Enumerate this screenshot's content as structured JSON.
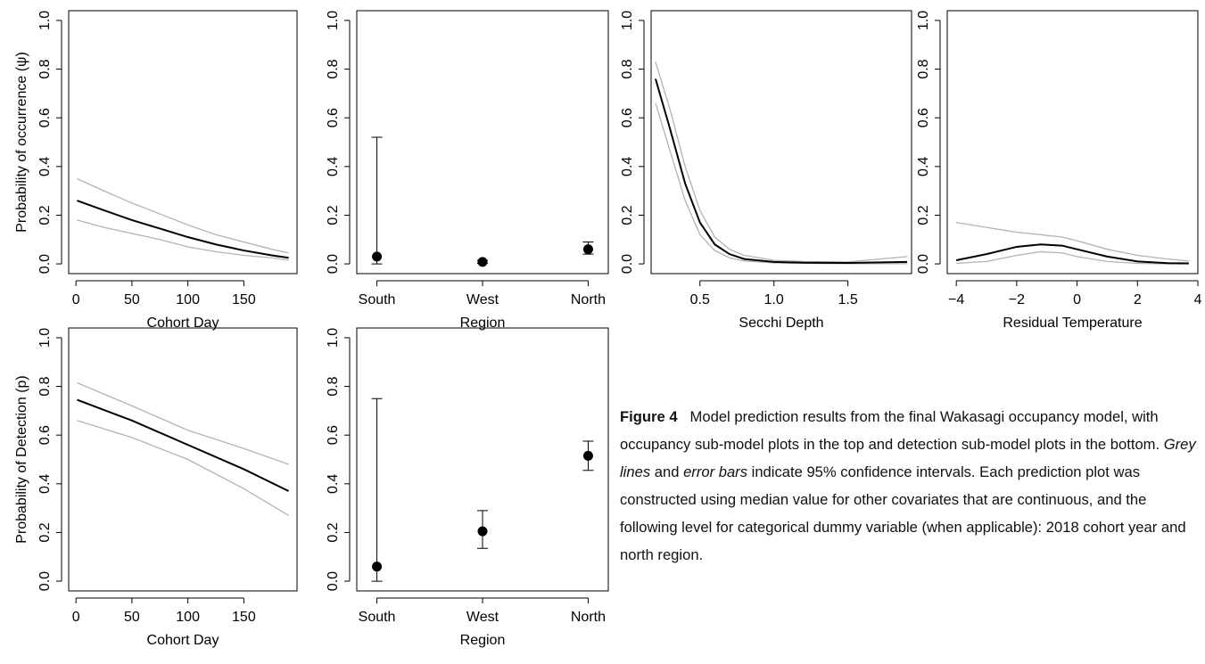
{
  "chart_data": [
    {
      "type": "line",
      "xlabel": "Cohort Day",
      "ylabel": "Probability of occurrence (ψ)",
      "x": [
        1,
        25,
        50,
        75,
        100,
        125,
        150,
        175,
        190
      ],
      "series": [
        {
          "color": "#b3b3b3",
          "values": [
            0.35,
            0.3,
            0.25,
            0.205,
            0.16,
            0.12,
            0.09,
            0.06,
            0.045
          ]
        },
        {
          "color": "#b3b3b3",
          "values": [
            0.18,
            0.15,
            0.125,
            0.1,
            0.07,
            0.05,
            0.035,
            0.025,
            0.015
          ]
        },
        {
          "color": "#000000",
          "values": [
            0.26,
            0.22,
            0.18,
            0.145,
            0.11,
            0.08,
            0.055,
            0.035,
            0.025
          ]
        }
      ],
      "xlim": [
        -6.5,
        197.5
      ],
      "xticks": [
        0,
        50,
        100,
        150
      ],
      "ylim": [
        -0.04,
        1.04
      ],
      "yticks": [
        {
          "value": 0,
          "label": "0.0"
        },
        0.2,
        0.4,
        0.6,
        0.8,
        {
          "value": 1,
          "label": "1.0"
        }
      ]
    },
    {
      "type": "errorbar",
      "xlabel": "Region",
      "categories": [
        "South",
        "West",
        "North"
      ],
      "values": [
        0.03,
        0.008,
        0.06
      ],
      "lower": [
        0.0,
        0.002,
        0.04
      ],
      "upper": [
        0.52,
        0.015,
        0.09
      ],
      "ylim": [
        -0.04,
        1.04
      ],
      "yticks": [
        {
          "value": 0,
          "label": "0.0"
        },
        0.2,
        0.4,
        0.6,
        0.8,
        {
          "value": 1,
          "label": "1.0"
        }
      ]
    },
    {
      "type": "line",
      "xlabel": "Secchi Depth",
      "x": [
        0.2,
        0.3,
        0.4,
        0.5,
        0.6,
        0.7,
        0.8,
        1.0,
        1.2,
        1.5,
        1.9
      ],
      "series": [
        {
          "color": "#b3b3b3",
          "values": [
            0.83,
            0.63,
            0.4,
            0.22,
            0.11,
            0.06,
            0.035,
            0.015,
            0.01,
            0.008,
            0.03
          ]
        },
        {
          "color": "#b3b3b3",
          "values": [
            0.66,
            0.46,
            0.26,
            0.12,
            0.055,
            0.025,
            0.012,
            0.004,
            0.002,
            0.001,
            0.001
          ]
        },
        {
          "color": "#000000",
          "values": [
            0.76,
            0.55,
            0.33,
            0.17,
            0.08,
            0.04,
            0.02,
            0.008,
            0.005,
            0.004,
            0.008
          ]
        }
      ],
      "xlim": [
        0.17,
        1.93
      ],
      "xticks": [
        0.5,
        {
          "value": 1,
          "label": "1.0"
        },
        1.5
      ],
      "ylim": [
        -0.04,
        1.04
      ],
      "yticks": [
        {
          "value": 0,
          "label": "0.0"
        },
        0.2,
        0.4,
        0.6,
        0.8,
        {
          "value": 1,
          "label": "1.0"
        }
      ]
    },
    {
      "type": "line",
      "xlabel": "Residual Temperature",
      "x": [
        -4,
        -3,
        -2,
        -1.2,
        -0.5,
        0,
        1,
        2,
        3,
        3.7
      ],
      "series": [
        {
          "color": "#b3b3b3",
          "values": [
            0.17,
            0.15,
            0.13,
            0.12,
            0.11,
            0.095,
            0.06,
            0.035,
            0.02,
            0.012
          ]
        },
        {
          "color": "#b3b3b3",
          "values": [
            0.002,
            0.01,
            0.035,
            0.05,
            0.045,
            0.03,
            0.01,
            0.002,
            0.0,
            0.0
          ]
        },
        {
          "color": "#000000",
          "values": [
            0.015,
            0.04,
            0.07,
            0.08,
            0.075,
            0.06,
            0.03,
            0.01,
            0.003,
            0.002
          ]
        }
      ],
      "xlim": [
        -4.3,
        4.0
      ],
      "xticks": [
        {
          "value": -4,
          "label": "−4"
        },
        {
          "value": -2,
          "label": "−2"
        },
        0,
        2,
        4
      ],
      "ylim": [
        -0.04,
        1.04
      ],
      "yticks": [
        {
          "value": 0,
          "label": "0.0"
        },
        0.2,
        0.4,
        0.6,
        0.8,
        {
          "value": 1,
          "label": "1.0"
        }
      ]
    },
    {
      "type": "line",
      "xlabel": "Cohort Day",
      "ylabel": "Probability of Detection (p)",
      "x": [
        1,
        50,
        100,
        150,
        190
      ],
      "series": [
        {
          "color": "#b3b3b3",
          "values": [
            0.815,
            0.72,
            0.62,
            0.545,
            0.48
          ]
        },
        {
          "color": "#b3b3b3",
          "values": [
            0.66,
            0.59,
            0.5,
            0.38,
            0.27
          ]
        },
        {
          "color": "#000000",
          "values": [
            0.745,
            0.66,
            0.56,
            0.46,
            0.37
          ]
        }
      ],
      "xlim": [
        -6.5,
        197.5
      ],
      "xticks": [
        0,
        50,
        100,
        150
      ],
      "ylim": [
        -0.04,
        1.04
      ],
      "yticks": [
        {
          "value": 0,
          "label": "0.0"
        },
        0.2,
        0.4,
        0.6,
        0.8,
        {
          "value": 1,
          "label": "1.0"
        }
      ]
    },
    {
      "type": "errorbar",
      "xlabel": "Region",
      "categories": [
        "South",
        "West",
        "North"
      ],
      "values": [
        0.06,
        0.205,
        0.515
      ],
      "lower": [
        0.0,
        0.135,
        0.455
      ],
      "upper": [
        0.75,
        0.29,
        0.575
      ],
      "ylim": [
        -0.04,
        1.04
      ],
      "yticks": [
        {
          "value": 0,
          "label": "0.0"
        },
        0.2,
        0.4,
        0.6,
        0.8,
        {
          "value": 1,
          "label": "1.0"
        }
      ]
    }
  ],
  "caption": {
    "label": "Figure 4",
    "parts": [
      "Model prediction results from the final Wakasagi occupancy model, with occupancy sub-model plots in the top and detection sub-model plots in the bottom.",
      "Grey lines",
      "and",
      "error bars",
      "indicate 95% confidence intervals. Each prediction plot was constructed using median value for other covariates that are continuous, and the following level for categorical dummy variable (when applicable): 2018 cohort year and north region."
    ]
  }
}
